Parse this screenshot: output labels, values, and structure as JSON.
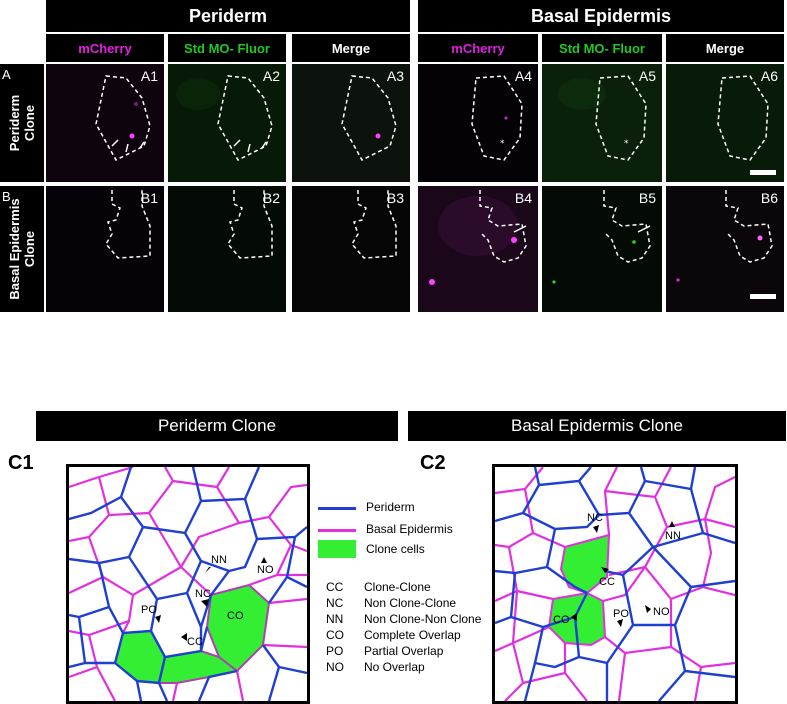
{
  "top_headers": {
    "periderm": "Periderm",
    "basal": "Basal Epidermis"
  },
  "channels": [
    {
      "label": "mCherry",
      "color": "#e020e0"
    },
    {
      "label": "Std MO- Fluor",
      "color": "#22c822"
    },
    {
      "label": "Merge",
      "color": "#ffffff"
    },
    {
      "label": "mCherry",
      "color": "#e020e0"
    },
    {
      "label": "Std MO- Fluor",
      "color": "#22c822"
    },
    {
      "label": "Merge",
      "color": "#ffffff"
    }
  ],
  "rows": [
    {
      "letter": "A",
      "title_l1": "Periderm",
      "title_l2": "Clone",
      "panels": [
        "A1",
        "A2",
        "A3",
        "A4",
        "A5",
        "A6"
      ]
    },
    {
      "letter": "B",
      "title_l1": "Basal Epidermis",
      "title_l2": "Clone",
      "panels": [
        "B1",
        "B2",
        "B3",
        "B4",
        "B5",
        "B6"
      ]
    }
  ],
  "section_bars": {
    "c1": "Periderm Clone",
    "c2": "Basal Epidermis Clone"
  },
  "diagram_labels": {
    "c1": "C1",
    "c2": "C2"
  },
  "legend": [
    {
      "label": "Periderm",
      "color": "#1f3fd0"
    },
    {
      "label": "Basal Epidermis",
      "color": "#e030e0"
    },
    {
      "label": "Clone cells",
      "color": "#33ee33"
    }
  ],
  "abbreviations": [
    {
      "code": "CC",
      "meaning": "Clone-Clone"
    },
    {
      "code": "NC",
      "meaning": "Non Clone-Clone"
    },
    {
      "code": "NN",
      "meaning": "Non Clone-Non Clone"
    },
    {
      "code": "CO",
      "meaning": "Complete Overlap"
    },
    {
      "code": "PO",
      "meaning": "Partial Overlap"
    },
    {
      "code": "NO",
      "meaning": "No Overlap"
    }
  ],
  "c1_annotations": [
    "NN",
    "NO",
    "PO",
    "NC",
    "CO",
    "CC"
  ],
  "c2_annotations": [
    "NC",
    "NN",
    "CC",
    "CO",
    "PO",
    "NO"
  ]
}
